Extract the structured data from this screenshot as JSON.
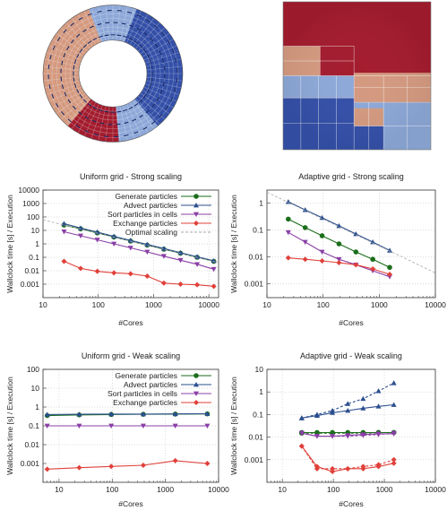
{
  "images": [
    {
      "name": "annulus-mesh-image"
    },
    {
      "name": "adaptive-mesh-image"
    }
  ],
  "colors": {
    "generate": "#1b6e1b",
    "advect": "#2b4f8f",
    "sort": "#8a3fa6",
    "exchange": "#e0403a",
    "optimal": "#aaaaaa",
    "red": "#a31c2e",
    "salmon": "#d49a80",
    "blue": "#3450a8",
    "lightblue": "#8da8d8"
  },
  "chart_data": [
    {
      "type": "line",
      "title": "Uniform grid - Strong scaling",
      "xlabel": "#Cores",
      "ylabel": "Wallclock time [s] / Execution",
      "xscale": "log",
      "yscale": "log",
      "xlim": [
        10,
        15000
      ],
      "ylim": [
        0.0001,
        10000
      ],
      "xticks": [
        "10",
        "100",
        "1000",
        "10000"
      ],
      "yticks": [
        "10000",
        "1000",
        "100",
        "10",
        "1",
        "0.1",
        "0.01",
        "0.001"
      ],
      "grid": true,
      "legend": "top-right",
      "x": [
        24,
        48,
        96,
        192,
        384,
        768,
        1536,
        3072,
        6144,
        12288
      ],
      "series": [
        {
          "name": "Generate particles",
          "key": "generate",
          "marker": "circle",
          "values": [
            25,
            13,
            6.5,
            3.2,
            1.6,
            0.8,
            0.4,
            0.2,
            0.1,
            0.05
          ]
        },
        {
          "name": "Advect particles",
          "key": "advect",
          "marker": "triangle",
          "values": [
            32,
            15,
            7.5,
            3.6,
            1.8,
            0.9,
            0.45,
            0.22,
            0.11,
            0.055
          ]
        },
        {
          "name": "Sort particles in cells",
          "key": "sort",
          "marker": "triangle-down",
          "values": [
            8,
            4,
            2,
            1,
            0.5,
            0.25,
            0.12,
            0.06,
            0.03,
            0.013
          ]
        },
        {
          "name": "Exchange particles",
          "key": "exchange",
          "marker": "diamond",
          "values": [
            0.05,
            0.015,
            0.009,
            0.007,
            0.006,
            0.004,
            0.0012,
            0.001,
            0.0009,
            0.0007
          ]
        },
        {
          "name": "Optimal scaling",
          "key": "optimal",
          "marker": "none",
          "dashed": true,
          "x": [
            10,
            15000
          ],
          "values": [
            60,
            0.04
          ]
        }
      ]
    },
    {
      "type": "line",
      "title": "Adaptive grid - Strong scaling",
      "xlabel": "#Cores",
      "ylabel": "Wallclock time [s] / Execution",
      "xscale": "log",
      "yscale": "log",
      "xlim": [
        10,
        10000
      ],
      "ylim": [
        0.0003,
        3
      ],
      "xticks": [
        "10",
        "100",
        "1000",
        "10000"
      ],
      "yticks": [
        "1",
        "0.1",
        "0.01",
        "0.001"
      ],
      "grid": true,
      "x": [
        24,
        48,
        96,
        192,
        384,
        768,
        1536
      ],
      "series": [
        {
          "key": "generate",
          "marker": "circle",
          "values": [
            0.25,
            0.12,
            0.06,
            0.03,
            0.015,
            0.008,
            0.004
          ]
        },
        {
          "key": "advect",
          "marker": "triangle",
          "values": [
            1.1,
            0.55,
            0.28,
            0.14,
            0.07,
            0.035,
            0.017
          ]
        },
        {
          "key": "sort",
          "marker": "triangle-down",
          "values": [
            0.08,
            0.035,
            0.015,
            0.008,
            0.005,
            0.003,
            0.0018
          ]
        },
        {
          "key": "exchange",
          "marker": "diamond",
          "values": [
            0.009,
            0.008,
            0.007,
            0.006,
            0.005,
            0.0035,
            0.0022
          ]
        },
        {
          "key": "optimal",
          "marker": "none",
          "dashed": true,
          "x": [
            10,
            10000
          ],
          "values": [
            2.5,
            0.0025
          ]
        }
      ]
    },
    {
      "type": "line",
      "title": "Uniform grid - Weak scaling",
      "xlabel": "#Cores",
      "ylabel": "Wallclock time [s] / Execution",
      "xscale": "log",
      "yscale": "log",
      "xlim": [
        5,
        10000
      ],
      "ylim": [
        0.0001,
        100
      ],
      "xticks": [
        "10",
        "100",
        "1000",
        "10000"
      ],
      "yticks": [
        "100",
        "10",
        "1",
        "0.1",
        "0.01",
        "0.001"
      ],
      "grid": true,
      "legend": "top-right",
      "x": [
        6,
        24,
        96,
        384,
        1536,
        6144
      ],
      "series": [
        {
          "name": "Generate particles",
          "key": "generate",
          "marker": "circle",
          "values": [
            0.35,
            0.38,
            0.4,
            0.41,
            0.42,
            0.43
          ]
        },
        {
          "name": "Advect particles",
          "key": "advect",
          "marker": "triangle",
          "values": [
            0.4,
            0.41,
            0.42,
            0.42,
            0.43,
            0.44
          ]
        },
        {
          "name": "Sort particles in cells",
          "key": "sort",
          "marker": "triangle-down",
          "values": [
            0.1,
            0.1,
            0.1,
            0.1,
            0.1,
            0.1
          ]
        },
        {
          "name": "Exchange particles",
          "key": "exchange",
          "marker": "diamond",
          "values": [
            0.0005,
            0.0006,
            0.0007,
            0.0008,
            0.0014,
            0.001
          ]
        }
      ]
    },
    {
      "type": "line",
      "title": "Adaptive grid - Weak scaling",
      "xlabel": "#Cores",
      "ylabel": "Wallclock time [s] / Execution",
      "xscale": "log",
      "yscale": "log",
      "xlim": [
        5,
        10000
      ],
      "ylim": [
        0.0001,
        10
      ],
      "xticks": [
        "10",
        "100",
        "1000",
        "10000"
      ],
      "yticks": [
        "10",
        "1",
        "0.1",
        "0.01",
        "0.001"
      ],
      "grid": true,
      "x": [
        24,
        48,
        96,
        192,
        384,
        768,
        1536
      ],
      "series": [
        {
          "key": "advect",
          "marker": "triangle",
          "values": [
            0.07,
            0.1,
            0.15,
            0.3,
            0.5,
            1.1,
            2.5
          ],
          "dashed": true
        },
        {
          "key": "advect",
          "marker": "triangle",
          "values": [
            0.07,
            0.09,
            0.12,
            0.15,
            0.19,
            0.23,
            0.27
          ]
        },
        {
          "key": "generate",
          "marker": "circle",
          "values": [
            0.016,
            0.016,
            0.016,
            0.016,
            0.016,
            0.016,
            0.016
          ]
        },
        {
          "key": "generate",
          "marker": "circle",
          "values": [
            0.015,
            0.015,
            0.015,
            0.015,
            0.015,
            0.016,
            0.016
          ],
          "dashed": true
        },
        {
          "key": "sort",
          "marker": "triangle-down",
          "values": [
            0.015,
            0.011,
            0.011,
            0.012,
            0.013,
            0.014,
            0.014
          ]
        },
        {
          "key": "sort",
          "marker": "triangle-down",
          "values": [
            0.015,
            0.011,
            0.011,
            0.011,
            0.012,
            0.013,
            0.015
          ],
          "dashed": true
        },
        {
          "key": "exchange",
          "marker": "diamond",
          "values": [
            0.004,
            0.0004,
            0.0004,
            0.0004,
            0.0005,
            0.0006,
            0.001
          ],
          "dashed": true
        },
        {
          "key": "exchange",
          "marker": "diamond",
          "values": [
            0.004,
            0.0005,
            0.0003,
            0.0004,
            0.0004,
            0.0005,
            0.0007
          ]
        }
      ]
    }
  ]
}
